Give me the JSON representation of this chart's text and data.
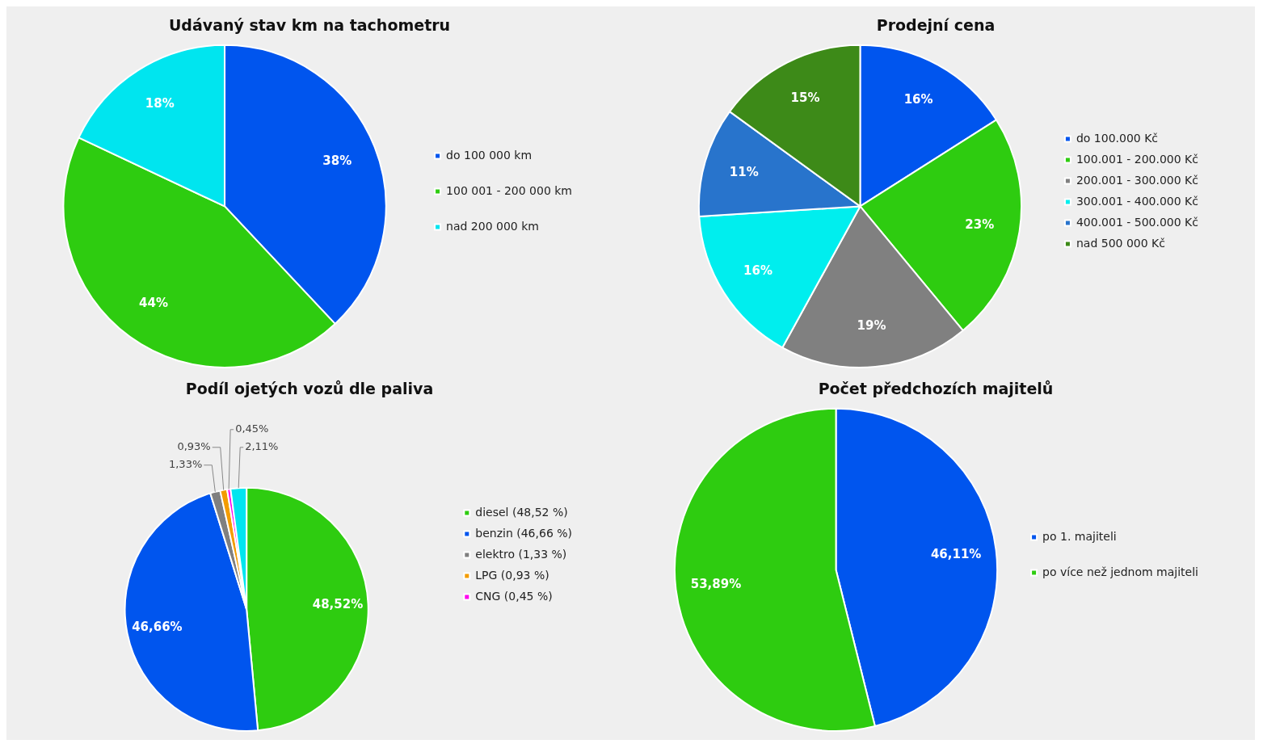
{
  "chart_data": [
    {
      "type": "pie",
      "title": "Udávaný stav km na tachometru",
      "categories": [
        "do 100 000 km",
        "100 001 - 200 000 km",
        "nad 200 000 km"
      ],
      "values": [
        38,
        44,
        18
      ],
      "colors": [
        "#0055ee",
        "#2ecc10",
        "#00e5ef"
      ],
      "value_labels": [
        "38%",
        "44%",
        "18%"
      ],
      "legend": "right"
    },
    {
      "type": "pie",
      "title": "Prodejní cena",
      "categories": [
        "do 100.000 Kč",
        "100.001 - 200.000 Kč",
        "200.001 - 300.000 Kč",
        "300.001 - 400.000 Kč",
        "400.001 - 500.000 Kč",
        "nad 500 000 Kč"
      ],
      "values": [
        16,
        23,
        19,
        16,
        11,
        15
      ],
      "colors": [
        "#0055ee",
        "#2ecc10",
        "#808080",
        "#00eeee",
        "#2874cc",
        "#3d8a18"
      ],
      "value_labels": [
        "16%",
        "23%",
        "19%",
        "16%",
        "11%",
        "15%"
      ],
      "legend": "right"
    },
    {
      "type": "pie",
      "title": "Podíl ojetých vozů dle paliva",
      "categories": [
        "diesel (48,52 %)",
        "benzin (46,66 %)",
        "elektro (1,33 %)",
        "LPG (0,93 %)",
        "CNG (0,45 %)",
        null
      ],
      "values": [
        48.52,
        46.66,
        1.33,
        0.93,
        0.45,
        2.11
      ],
      "colors": [
        "#2ecc10",
        "#0055ee",
        "#808080",
        "#f39c00",
        "#ff00ee",
        "#00e5ef"
      ],
      "value_labels": [
        "48,52%",
        "46,66%",
        "1,33%",
        "0,93%",
        "0,45%",
        "2,11%"
      ],
      "legend": "right"
    },
    {
      "type": "pie",
      "title": "Počet předchozích majitelů",
      "categories": [
        "po 1. majiteli",
        "po více než jednom majiteli"
      ],
      "values": [
        46.11,
        53.89
      ],
      "colors": [
        "#0055ee",
        "#2ecc10"
      ],
      "value_labels": [
        "46,11%",
        "53,89%"
      ],
      "legend": "right"
    }
  ]
}
